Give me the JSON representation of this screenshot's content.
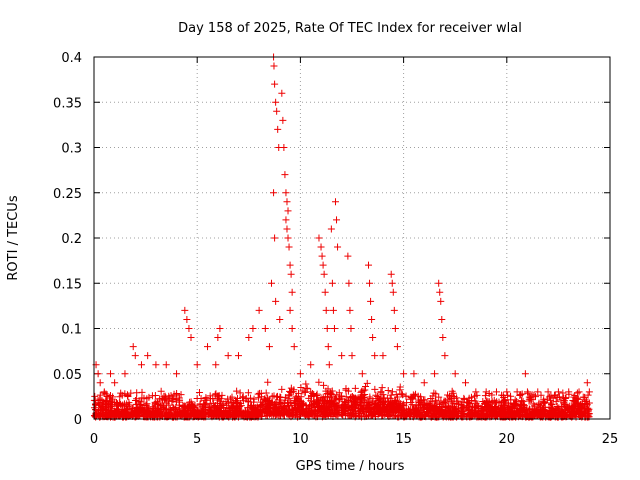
{
  "chart_data": {
    "type": "scatter",
    "title": "Day 158 of 2025, Rate Of TEC Index for receiver wlal",
    "xlabel": "GPS time / hours",
    "ylabel": "ROTI / TECUs",
    "xlim": [
      0,
      25
    ],
    "ylim": [
      0,
      0.4
    ],
    "xticks": [
      0,
      5,
      10,
      15,
      20,
      25
    ],
    "xtick_labels": [
      "0",
      "5",
      "10",
      "15",
      "20",
      "25"
    ],
    "yticks": [
      0,
      0.05,
      0.1,
      0.15,
      0.2,
      0.25,
      0.3,
      0.35,
      0.4
    ],
    "ytick_labels": [
      "0",
      "0.05",
      "0.1",
      "0.15",
      "0.2",
      "0.25",
      "0.3",
      "0.35",
      "0.4"
    ],
    "grid": true,
    "marker": "+",
    "color": "#ee0000",
    "series": [
      {
        "name": "ROTI",
        "points": [
          [
            0.1,
            0.06
          ],
          [
            0.2,
            0.05
          ],
          [
            0.3,
            0.04
          ],
          [
            0.5,
            0.03
          ],
          [
            0.8,
            0.05
          ],
          [
            1.0,
            0.04
          ],
          [
            1.5,
            0.05
          ],
          [
            1.9,
            0.08
          ],
          [
            2.0,
            0.07
          ],
          [
            2.3,
            0.06
          ],
          [
            2.6,
            0.07
          ],
          [
            3.0,
            0.06
          ],
          [
            3.5,
            0.06
          ],
          [
            4.0,
            0.05
          ],
          [
            4.4,
            0.12
          ],
          [
            4.5,
            0.11
          ],
          [
            4.6,
            0.1
          ],
          [
            4.7,
            0.09
          ],
          [
            5.0,
            0.06
          ],
          [
            5.5,
            0.08
          ],
          [
            5.9,
            0.06
          ],
          [
            6.0,
            0.09
          ],
          [
            6.1,
            0.1
          ],
          [
            6.5,
            0.07
          ],
          [
            7.0,
            0.07
          ],
          [
            7.5,
            0.09
          ],
          [
            7.7,
            0.1
          ],
          [
            8.0,
            0.12
          ],
          [
            8.3,
            0.1
          ],
          [
            8.5,
            0.08
          ],
          [
            8.6,
            0.15
          ],
          [
            8.7,
            0.4
          ],
          [
            8.72,
            0.39
          ],
          [
            8.75,
            0.37
          ],
          [
            8.8,
            0.35
          ],
          [
            8.85,
            0.34
          ],
          [
            8.9,
            0.32
          ],
          [
            8.95,
            0.3
          ],
          [
            8.7,
            0.25
          ],
          [
            8.75,
            0.2
          ],
          [
            8.8,
            0.13
          ],
          [
            9.0,
            0.11
          ],
          [
            9.1,
            0.36
          ],
          [
            9.15,
            0.33
          ],
          [
            9.2,
            0.3
          ],
          [
            9.25,
            0.27
          ],
          [
            9.3,
            0.25
          ],
          [
            9.35,
            0.24
          ],
          [
            9.4,
            0.23
          ],
          [
            9.3,
            0.22
          ],
          [
            9.35,
            0.21
          ],
          [
            9.4,
            0.2
          ],
          [
            9.45,
            0.19
          ],
          [
            9.5,
            0.17
          ],
          [
            9.55,
            0.16
          ],
          [
            9.6,
            0.14
          ],
          [
            9.5,
            0.12
          ],
          [
            9.6,
            0.1
          ],
          [
            9.7,
            0.08
          ],
          [
            10.0,
            0.05
          ],
          [
            10.5,
            0.06
          ],
          [
            10.9,
            0.2
          ],
          [
            11.0,
            0.19
          ],
          [
            11.05,
            0.18
          ],
          [
            11.1,
            0.17
          ],
          [
            11.15,
            0.16
          ],
          [
            11.2,
            0.14
          ],
          [
            11.25,
            0.12
          ],
          [
            11.3,
            0.1
          ],
          [
            11.35,
            0.08
          ],
          [
            11.4,
            0.06
          ],
          [
            11.5,
            0.21
          ],
          [
            11.55,
            0.15
          ],
          [
            11.6,
            0.12
          ],
          [
            11.65,
            0.1
          ],
          [
            11.7,
            0.24
          ],
          [
            11.75,
            0.22
          ],
          [
            11.8,
            0.19
          ],
          [
            12.0,
            0.07
          ],
          [
            12.3,
            0.18
          ],
          [
            12.35,
            0.15
          ],
          [
            12.4,
            0.12
          ],
          [
            12.45,
            0.1
          ],
          [
            12.5,
            0.07
          ],
          [
            13.0,
            0.05
          ],
          [
            13.3,
            0.17
          ],
          [
            13.35,
            0.15
          ],
          [
            13.4,
            0.13
          ],
          [
            13.45,
            0.11
          ],
          [
            13.5,
            0.09
          ],
          [
            13.6,
            0.07
          ],
          [
            14.0,
            0.07
          ],
          [
            14.4,
            0.16
          ],
          [
            14.45,
            0.15
          ],
          [
            14.5,
            0.14
          ],
          [
            14.55,
            0.12
          ],
          [
            14.6,
            0.1
          ],
          [
            14.7,
            0.08
          ],
          [
            15.0,
            0.05
          ],
          [
            15.5,
            0.05
          ],
          [
            16.0,
            0.04
          ],
          [
            16.5,
            0.05
          ],
          [
            16.7,
            0.15
          ],
          [
            16.75,
            0.14
          ],
          [
            16.8,
            0.13
          ],
          [
            16.85,
            0.11
          ],
          [
            16.9,
            0.09
          ],
          [
            17.0,
            0.07
          ],
          [
            17.5,
            0.05
          ],
          [
            18.0,
            0.04
          ],
          [
            18.5,
            0.03
          ],
          [
            19.0,
            0.03
          ],
          [
            19.5,
            0.03
          ],
          [
            20.0,
            0.03
          ],
          [
            20.5,
            0.03
          ],
          [
            20.9,
            0.05
          ],
          [
            21.0,
            0.03
          ],
          [
            21.5,
            0.03
          ],
          [
            22.0,
            0.03
          ],
          [
            22.5,
            0.03
          ],
          [
            23.0,
            0.03
          ],
          [
            23.5,
            0.03
          ],
          [
            23.9,
            0.04
          ],
          [
            24.0,
            0.03
          ]
        ]
      }
    ]
  }
}
